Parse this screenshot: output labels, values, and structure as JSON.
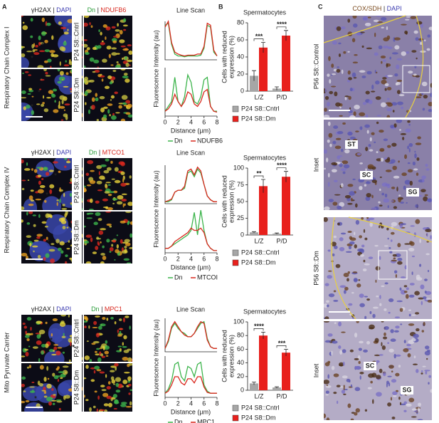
{
  "panel_labels": [
    "A",
    "B",
    "C"
  ],
  "panel_a": {
    "rows": [
      {
        "group_label": "Respiratory Chain Complex I",
        "stain_left": [
          "γH2AX",
          "|",
          "DAPI"
        ],
        "stain_right": [
          "Dn",
          "|",
          "NDUFB6"
        ],
        "genotypes": [
          "P24 S8::Cntrl",
          "P24 S8::Dm"
        ],
        "asterisks": [
          "*",
          "*",
          "*",
          "*"
        ]
      },
      {
        "group_label": "Respiratory Chain Complex IV",
        "stain_left": [
          "γH2AX",
          "|",
          "DAPI"
        ],
        "stain_right": [
          "Dn",
          "|",
          "MTCO1"
        ],
        "genotypes": [
          "P24 S8::Cntrl",
          "P24 S8::Dm"
        ],
        "asterisks": [
          "*",
          "*",
          "*"
        ]
      },
      {
        "group_label": "Mito Pyruvate Carrier",
        "stain_left": [
          "γH2AX",
          "|",
          "DAPI"
        ],
        "stain_right": [
          "Dn",
          "|",
          "MPC1"
        ],
        "genotypes": [
          "P24 S8::Cntrl",
          "P24 S8::Dm"
        ],
        "asterisks": [
          "*",
          "*",
          "*"
        ]
      }
    ]
  },
  "panel_c": {
    "title": [
      "COX/SDH",
      "|",
      "DAPI"
    ],
    "images": [
      {
        "label": "P56 S8::Control",
        "annotations": []
      },
      {
        "label": "Inset",
        "annotations": [
          "ST",
          "SC",
          "SG"
        ]
      },
      {
        "label": "P56 S8::Dm",
        "annotations": []
      },
      {
        "label": "Inset",
        "annotations": [
          "SC",
          "SG"
        ]
      }
    ]
  },
  "chart_data": [
    {
      "type": "line",
      "title": "Line Scan",
      "ylabel": "Fluorescence Intensity (au)",
      "x": [
        0,
        0.5,
        1,
        1.5,
        2,
        2.5,
        3,
        3.5,
        4,
        4.5,
        5,
        5.5,
        6,
        6.5,
        7,
        7.5,
        8
      ],
      "xlim": [
        0,
        8
      ],
      "ylim": [
        0,
        1
      ],
      "series": [
        {
          "color": "#3cb44b",
          "values": [
            0.9,
            0.95,
            0.4,
            0.15,
            0.1,
            0.1,
            0.08,
            0.1,
            0.1,
            0.1,
            0.1,
            0.12,
            0.3,
            0.9,
            0.85,
            0.2,
            0.1
          ]
        },
        {
          "color": "#d9281e",
          "values": [
            0.85,
            1,
            0.45,
            0.2,
            0.15,
            0.12,
            0.1,
            0.12,
            0.12,
            0.12,
            0.15,
            0.15,
            0.35,
            0.95,
            0.9,
            0.25,
            0.1
          ]
        }
      ]
    },
    {
      "type": "line",
      "xlabel": "Distance (µm)",
      "x": [
        0,
        0.5,
        1,
        1.5,
        2,
        2.5,
        3,
        3.5,
        4,
        4.5,
        5,
        5.5,
        6,
        6.5,
        7,
        7.5,
        8
      ],
      "xlim": [
        0,
        8
      ],
      "xticks": [
        0,
        2,
        4,
        6,
        8
      ],
      "ylim": [
        0,
        1
      ],
      "series": [
        {
          "name": "Dn",
          "color": "#3cb44b",
          "values": [
            0.1,
            0.2,
            0.3,
            0.8,
            0.3,
            0.2,
            0.4,
            0.85,
            0.7,
            0.3,
            0.25,
            0.4,
            0.75,
            0.8,
            0.2,
            0.1,
            0.1
          ]
        },
        {
          "name": "NDUFB6",
          "color": "#d9281e",
          "values": [
            0.1,
            0.15,
            0.25,
            0.45,
            0.3,
            0.2,
            0.3,
            0.5,
            0.45,
            0.25,
            0.2,
            0.3,
            0.5,
            0.55,
            0.2,
            0.1,
            0.08
          ]
        }
      ]
    },
    {
      "type": "bar",
      "title": "Spermatocytes",
      "ylabel": [
        "Cells with reduced",
        "expression (%)"
      ],
      "categories": [
        "L/Z",
        "P/D"
      ],
      "ylim": [
        0,
        80
      ],
      "yticks": [
        0,
        20,
        40,
        60,
        80
      ],
      "significance": [
        "***",
        "****"
      ],
      "series": [
        {
          "name": "P24 S8::Cntrl",
          "color": "#a6a6a6",
          "values": [
            18,
            3
          ],
          "errors": [
            6,
            2
          ]
        },
        {
          "name": "P24 S8::Dm",
          "color": "#e8201c",
          "values": [
            51,
            65
          ],
          "errors": [
            6,
            6
          ]
        }
      ]
    },
    {
      "type": "line",
      "title": "Line Scan",
      "ylabel": "Fluorescence Intensity (au)",
      "x": [
        0,
        0.5,
        1,
        1.5,
        2,
        2.5,
        3,
        3.5,
        4,
        4.5,
        5,
        5.5,
        6,
        6.5,
        7,
        7.5,
        8
      ],
      "xlim": [
        0,
        8
      ],
      "ylim": [
        0,
        1
      ],
      "series": [
        {
          "color": "#3cb44b",
          "values": [
            0.05,
            0.05,
            0.1,
            0.3,
            0.35,
            0.35,
            0.4,
            0.8,
            0.85,
            0.7,
            0.9,
            0.8,
            0.5,
            0.2,
            0.1,
            0.05,
            0.05
          ]
        },
        {
          "color": "#d9281e",
          "values": [
            0.05,
            0.08,
            0.12,
            0.3,
            0.35,
            0.35,
            0.45,
            0.85,
            0.9,
            0.75,
            0.95,
            0.85,
            0.5,
            0.2,
            0.1,
            0.05,
            0.05
          ]
        }
      ]
    },
    {
      "type": "line",
      "xlabel": "Distance (µm)",
      "x": [
        0,
        0.5,
        1,
        1.5,
        2,
        2.5,
        3,
        3.5,
        4,
        4.5,
        5,
        5.5,
        6,
        6.5,
        7,
        7.5,
        8
      ],
      "xlim": [
        0,
        8
      ],
      "xticks": [
        0,
        2,
        4,
        6,
        8
      ],
      "ylim": [
        0,
        1
      ],
      "series": [
        {
          "name": "Dn",
          "color": "#3cb44b",
          "values": [
            0.1,
            0.1,
            0.15,
            0.2,
            0.25,
            0.3,
            0.35,
            0.4,
            0.5,
            0.9,
            0.4,
            0.95,
            0.5,
            0.2,
            0.1,
            0.05,
            0.05
          ]
        },
        {
          "name": "MTCOI",
          "color": "#d9281e",
          "values": [
            0.1,
            0.1,
            0.15,
            0.25,
            0.3,
            0.35,
            0.4,
            0.45,
            0.55,
            0.5,
            0.5,
            0.55,
            0.45,
            0.2,
            0.1,
            0.05,
            0.05
          ]
        }
      ]
    },
    {
      "type": "bar",
      "title": "Spermatocytes",
      "ylabel": [
        "Cells with reduced",
        "expression (%)"
      ],
      "categories": [
        "L/Z",
        "P/D"
      ],
      "ylim": [
        0,
        100
      ],
      "yticks": [
        0,
        25,
        50,
        75,
        100
      ],
      "significance": [
        "**",
        "****"
      ],
      "series": [
        {
          "name": "P24 S8::Cntrl",
          "color": "#a6a6a6",
          "values": [
            4,
            2
          ],
          "errors": [
            1,
            1
          ]
        },
        {
          "name": "P24 S8::Dm",
          "color": "#e8201c",
          "values": [
            73,
            87
          ],
          "errors": [
            10,
            8
          ]
        }
      ]
    },
    {
      "type": "line",
      "title": "Line Scan",
      "ylabel": "Fluorescence Intensity (au)",
      "x": [
        0,
        0.5,
        1,
        1.5,
        2,
        2.5,
        3,
        3.5,
        4,
        4.5,
        5,
        5.5,
        6,
        6.5,
        7,
        7.5,
        8
      ],
      "xlim": [
        0,
        8
      ],
      "ylim": [
        0,
        1
      ],
      "series": [
        {
          "color": "#3cb44b",
          "values": [
            0.1,
            0.3,
            0.7,
            0.85,
            0.7,
            0.6,
            0.55,
            0.45,
            0.45,
            0.55,
            0.7,
            0.85,
            0.9,
            0.4,
            0.15,
            0.1,
            0.1
          ]
        },
        {
          "color": "#d9281e",
          "values": [
            0.1,
            0.35,
            0.75,
            0.9,
            0.75,
            0.6,
            0.5,
            0.45,
            0.45,
            0.55,
            0.75,
            0.9,
            0.85,
            0.35,
            0.15,
            0.1,
            0.1
          ]
        }
      ]
    },
    {
      "type": "line",
      "xlabel": "Distance (µm)",
      "x": [
        0,
        0.5,
        1,
        1.5,
        2,
        2.5,
        3,
        3.5,
        4,
        4.5,
        5,
        5.5,
        6,
        6.5,
        7,
        7.5,
        8
      ],
      "xlim": [
        0,
        8
      ],
      "xticks": [
        0,
        2,
        4,
        6,
        8
      ],
      "ylim": [
        0,
        1
      ],
      "series": [
        {
          "name": "Dn",
          "color": "#3cb44b",
          "values": [
            0.1,
            0.2,
            0.4,
            0.8,
            0.85,
            0.5,
            0.4,
            0.75,
            0.7,
            0.5,
            0.8,
            0.85,
            0.3,
            0.15,
            0.1,
            0.1,
            0.1
          ]
        },
        {
          "name": "MPC1",
          "color": "#d9281e",
          "values": [
            0.1,
            0.15,
            0.3,
            0.5,
            0.5,
            0.35,
            0.3,
            0.45,
            0.45,
            0.35,
            0.5,
            0.5,
            0.25,
            0.12,
            0.1,
            0.1,
            0.1
          ]
        }
      ]
    },
    {
      "type": "bar",
      "title": "Spermatocytes",
      "ylabel": [
        "Cells with reduced",
        "expression (%)"
      ],
      "categories": [
        "L/Z",
        "P/D"
      ],
      "ylim": [
        0,
        100
      ],
      "yticks": [
        0,
        20,
        40,
        60,
        80,
        100
      ],
      "significance": [
        "****",
        "***"
      ],
      "series": [
        {
          "name": "P24 S8::Cntrl",
          "color": "#a6a6a6",
          "values": [
            10,
            4
          ],
          "errors": [
            2,
            1
          ]
        },
        {
          "name": "P24 S8::Dm",
          "color": "#e8201c",
          "values": [
            80,
            55
          ],
          "errors": [
            5,
            5
          ]
        }
      ]
    }
  ]
}
